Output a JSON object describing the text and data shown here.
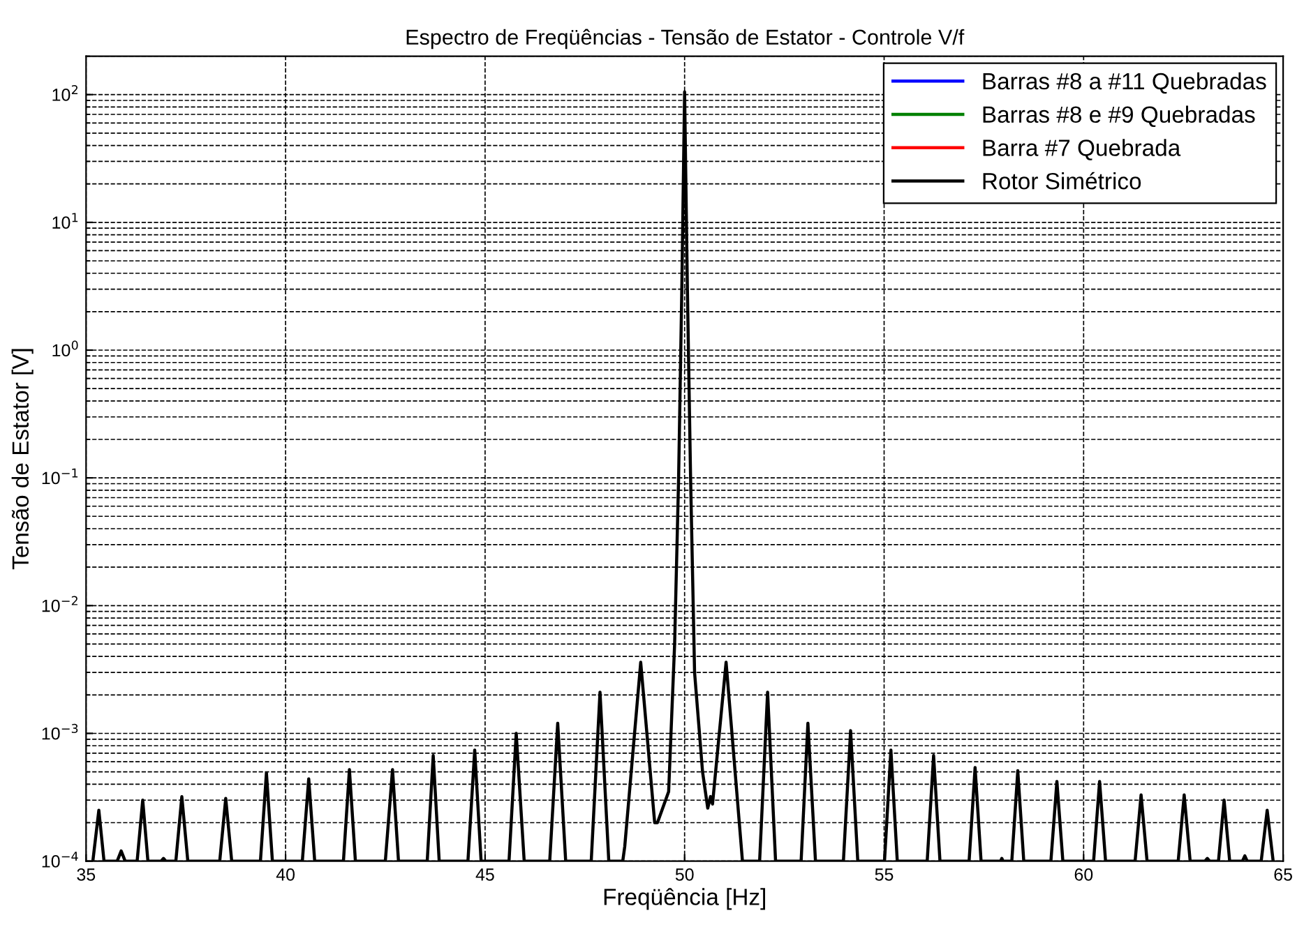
{
  "chart_data": {
    "type": "line",
    "title": "Espectro de Freqüências - Tensão de Estator - Controle V/f",
    "xlabel": "Freqüência [Hz]",
    "ylabel": "Tensão de Estator [V]",
    "log": "y",
    "grid": true,
    "legend": "top right",
    "line_style": "solid",
    "marker": "none",
    "xlim": [
      35,
      65
    ],
    "xticks": [
      35,
      40,
      45,
      50,
      55,
      60,
      65
    ],
    "ylim": [
      0.0001,
      200
    ],
    "yticks": [
      {
        "value": 0.0001,
        "label": "10$^{−4}$"
      },
      {
        "value": 0.001,
        "label": "10$^{−3}$"
      },
      {
        "value": 0.01,
        "label": "10$^{−2}$"
      },
      {
        "value": 0.1,
        "label": "10$^{−1}$"
      },
      {
        "value": 1,
        "label": "10$^{0}$"
      },
      {
        "value": 10,
        "label": "10$^{1}$"
      },
      {
        "value": 100,
        "label": "10$^{2}$"
      }
    ],
    "series": [
      {
        "name": "Barras #8 a #11 Quebradas",
        "color": "#0000ff"
      },
      {
        "name": "Barras #8 e #9 Quebradas",
        "color": "#008000"
      },
      {
        "name": "Barra #7 Quebrada",
        "color": "#ff0000"
      },
      {
        "name": "Rotor Simétrico",
        "color": "#000000",
        "x": [
          35.17,
          35.32,
          35.45,
          35.78,
          35.88,
          35.98,
          36.28,
          36.42,
          36.55,
          36.88,
          36.94,
          37.0,
          37.25,
          37.4,
          37.55,
          38.35,
          38.5,
          38.65,
          39.37,
          39.52,
          39.67,
          40.42,
          40.58,
          40.73,
          41.45,
          41.6,
          41.75,
          42.5,
          42.68,
          42.83,
          43.55,
          43.7,
          43.85,
          44.57,
          44.74,
          44.9,
          45.6,
          45.78,
          45.98,
          46.62,
          46.82,
          47.02,
          47.66,
          47.88,
          48.1,
          48.45,
          48.5,
          48.9,
          49.25,
          49.32,
          49.6,
          49.75,
          49.85,
          49.93,
          50.0,
          50.07,
          50.15,
          50.25,
          50.45,
          50.58,
          50.65,
          50.7,
          51.04,
          51.45,
          51.88,
          52.08,
          52.28,
          52.92,
          53.09,
          53.28,
          53.98,
          54.16,
          54.34,
          55.01,
          55.17,
          55.33,
          56.08,
          56.24,
          56.4,
          57.13,
          57.28,
          57.43,
          57.92,
          57.95,
          57.98,
          58.2,
          58.35,
          58.5,
          59.18,
          59.33,
          59.48,
          60.25,
          60.4,
          60.55,
          61.29,
          61.44,
          61.59,
          62.37,
          62.52,
          62.67,
          63.04,
          63.1,
          63.16,
          63.38,
          63.52,
          63.66,
          63.98,
          64.04,
          64.1,
          64.45,
          64.6,
          64.75
        ],
        "values": [
          0.0001,
          0.00025,
          0.0001,
          0.0001,
          0.00012,
          0.0001,
          0.0001,
          0.0003,
          0.0001,
          0.0001,
          0.000105,
          0.0001,
          0.0001,
          0.00032,
          0.0001,
          0.0001,
          0.00031,
          0.0001,
          0.0001,
          0.00049,
          0.0001,
          0.0001,
          0.00044,
          0.0001,
          0.0001,
          0.00052,
          0.0001,
          0.0001,
          0.00052,
          0.0001,
          0.0001,
          0.00067,
          0.0001,
          0.0001,
          0.00074,
          0.0001,
          0.0001,
          0.001,
          0.0001,
          0.0001,
          0.0012,
          0.0001,
          0.0001,
          0.0021,
          0.0001,
          0.0001,
          0.00013,
          0.0036,
          0.0002,
          0.0002,
          0.00035,
          0.005,
          0.1,
          3,
          105,
          3,
          0.1,
          0.003,
          0.0005,
          0.00026,
          0.00032,
          0.00028,
          0.0036,
          0.0001,
          0.0001,
          0.0021,
          0.0001,
          0.0001,
          0.0012,
          0.0001,
          0.0001,
          0.00105,
          0.0001,
          0.0001,
          0.00074,
          0.0001,
          0.0001,
          0.00067,
          0.0001,
          0.0001,
          0.00054,
          0.0001,
          0.0001,
          0.000105,
          0.0001,
          0.0001,
          0.00051,
          0.0001,
          0.0001,
          0.00042,
          0.0001,
          0.0001,
          0.00042,
          0.0001,
          0.0001,
          0.00033,
          0.0001,
          0.0001,
          0.00033,
          0.0001,
          0.0001,
          0.000105,
          0.0001,
          0.0001,
          0.0003,
          0.0001,
          0.0001,
          0.00011,
          0.0001,
          0.0001,
          0.00025,
          0.0001
        ]
      }
    ]
  }
}
